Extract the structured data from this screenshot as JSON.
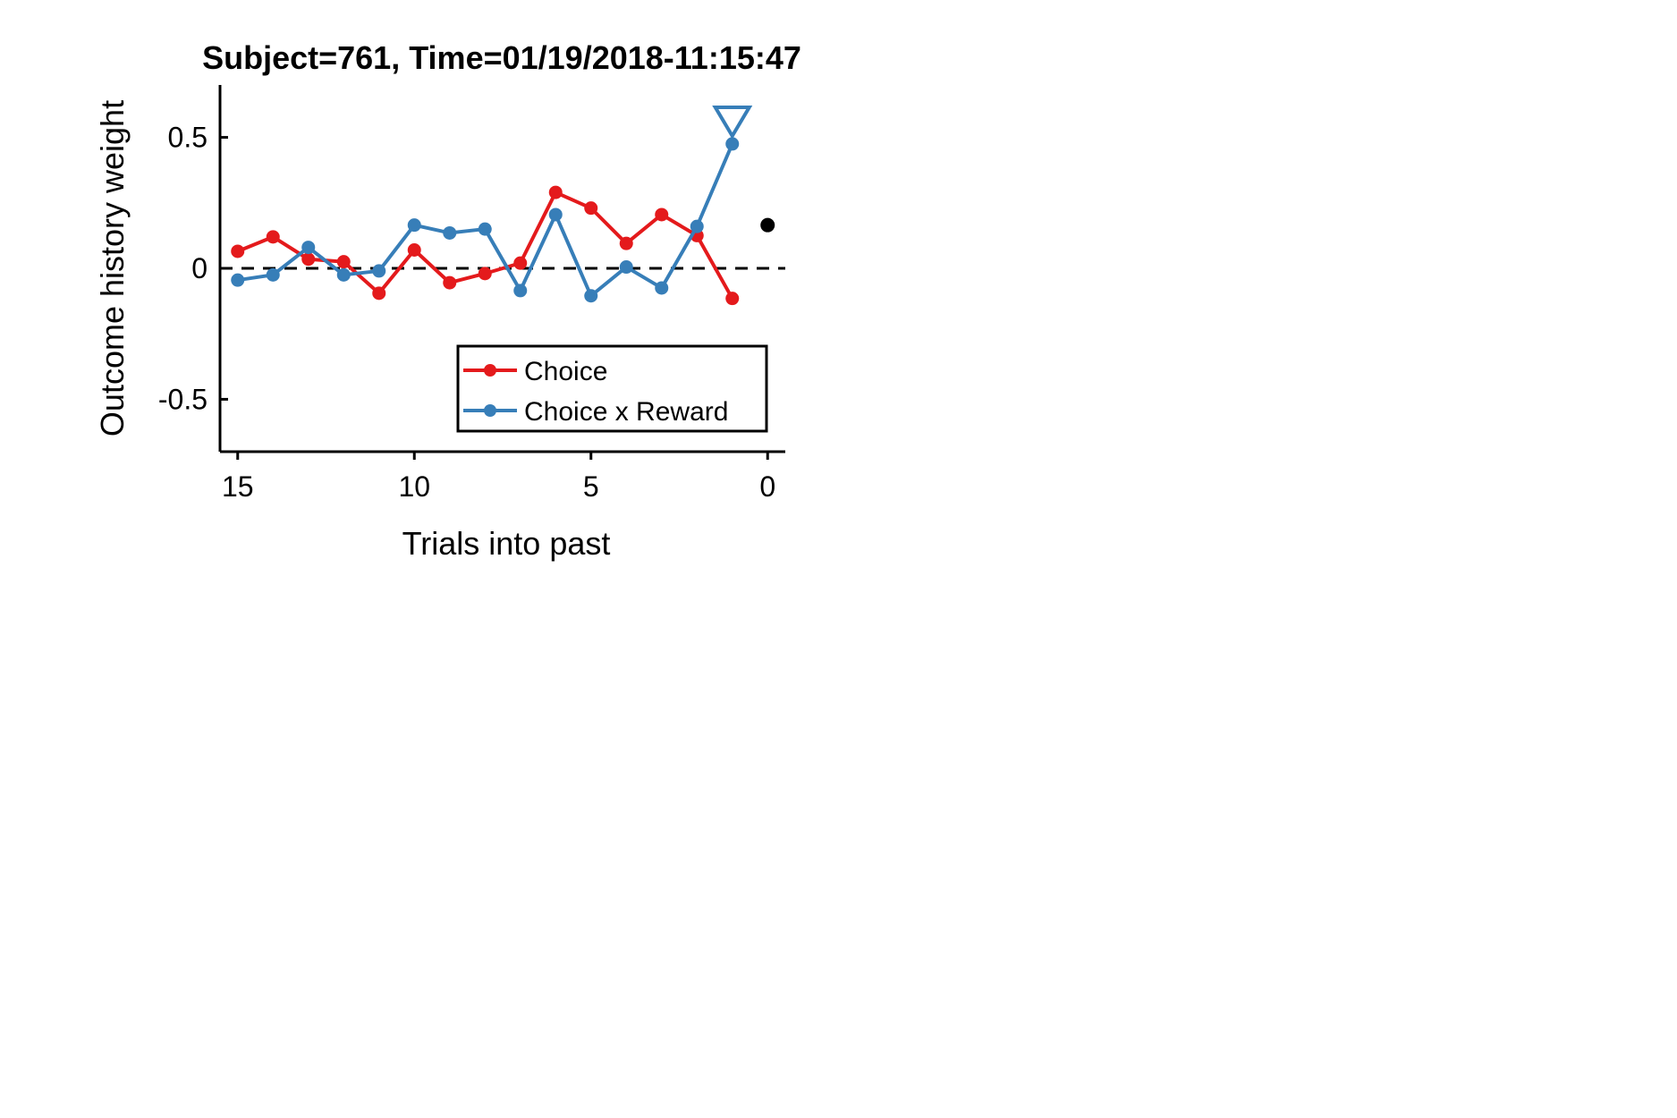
{
  "chart_data": {
    "type": "line",
    "title": "Subject=761, Time=01/19/2018-11:15:47",
    "xlabel": "Trials into past",
    "ylabel": "Outcome history weight",
    "xlim": [
      15.5,
      -0.5
    ],
    "ylim": [
      -0.7,
      0.7
    ],
    "x_reversed": true,
    "xticks": [
      15,
      10,
      5,
      0
    ],
    "xtick_labels": [
      "15",
      "10",
      "5",
      "0"
    ],
    "yticks": [
      0.5,
      0,
      -0.5
    ],
    "ytick_labels": [
      "0.5",
      "0",
      "-0.5"
    ],
    "reference_line": {
      "y": 0,
      "style": "dashed",
      "color": "#000000"
    },
    "legend_position": "lower-right",
    "grid": false,
    "series": [
      {
        "name": "Choice",
        "color": "#e41a1c",
        "marker": "circle",
        "x": [
          15,
          14,
          13,
          12,
          11,
          10,
          9,
          8,
          7,
          6,
          5,
          4,
          3,
          2,
          1
        ],
        "y": [
          0.065,
          0.12,
          0.035,
          0.025,
          -0.095,
          0.07,
          -0.055,
          -0.02,
          0.02,
          0.29,
          0.23,
          0.095,
          0.205,
          0.125,
          -0.115
        ]
      },
      {
        "name": "Choice x Reward",
        "color": "#377eb8",
        "marker": "circle",
        "x": [
          15,
          14,
          13,
          12,
          11,
          10,
          9,
          8,
          7,
          6,
          5,
          4,
          3,
          2,
          1
        ],
        "y": [
          -0.045,
          -0.025,
          0.08,
          -0.025,
          -0.01,
          0.165,
          0.135,
          0.15,
          -0.085,
          0.205,
          -0.105,
          0.005,
          -0.075,
          0.16,
          0.475
        ]
      }
    ],
    "extra_markers": [
      {
        "shape": "triangle-down-open",
        "color": "#377eb8",
        "x": 1,
        "y": 0.56
      },
      {
        "shape": "dot",
        "color": "#000000",
        "x": 0,
        "y": 0.165
      }
    ]
  }
}
